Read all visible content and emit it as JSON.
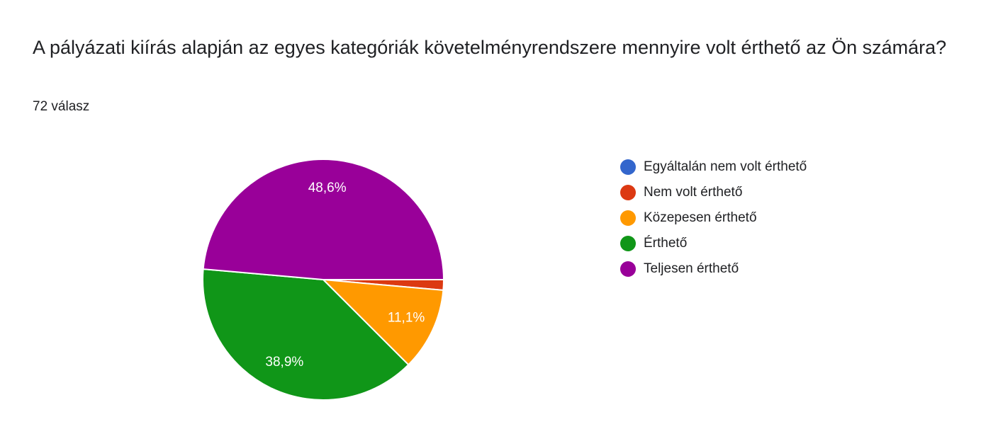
{
  "chart_data": {
    "type": "pie",
    "title": "A pályázati kiírás alapján az egyes kategóriák követelményrendszere mennyire volt érthető az Ön számára?",
    "subtitle": "72 válasz",
    "categories": [
      "Egyáltalán nem volt érthető",
      "Nem volt érthető",
      "Közepesen érthető",
      "Érthető",
      "Teljesen érthető"
    ],
    "values": [
      0,
      1.4,
      11.1,
      38.9,
      48.6
    ],
    "value_labels": [
      null,
      null,
      "11,1%",
      "38,9%",
      "48,6%"
    ],
    "colors": [
      "#3366cc",
      "#dc3912",
      "#ff9900",
      "#109618",
      "#990099"
    ]
  }
}
